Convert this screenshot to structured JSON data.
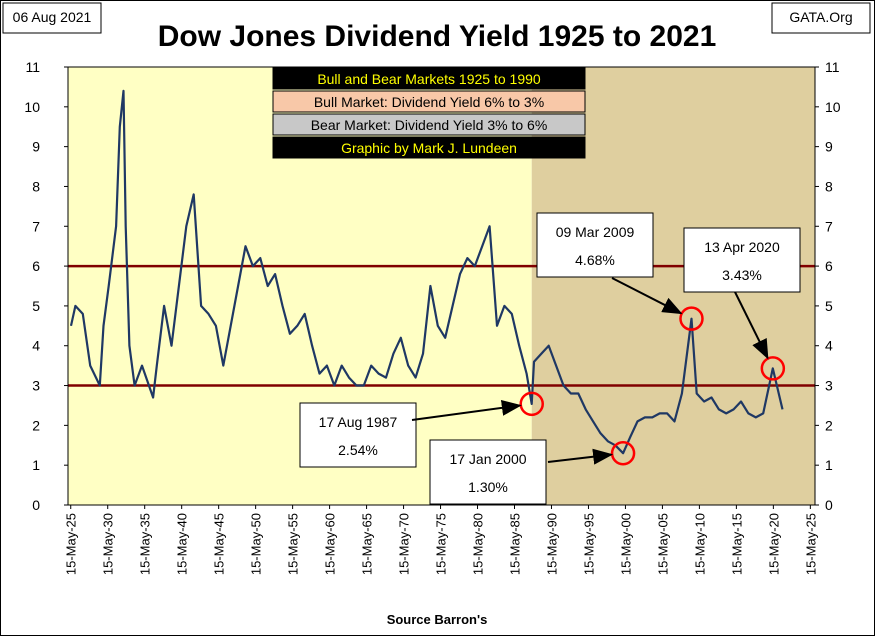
{
  "chart_data": {
    "type": "line",
    "title": "Dow Jones Dividend Yield 1925 to 2021",
    "date_stamp": "06 Aug 2021",
    "source_site": "GATA.Org",
    "x_label": "Source Barron's",
    "legend_box": [
      {
        "text": "Bull and Bear Markets 1925 to 1990",
        "bg": "#000000",
        "fg": "#ffff00"
      },
      {
        "text": "Bull Market: Dividend Yield 6% to 3%",
        "bg": "#f8c8a8",
        "fg": "#000000"
      },
      {
        "text": "Bear Market: Dividend Yield 3% to 6%",
        "bg": "#c8c8c8",
        "fg": "#000000"
      },
      {
        "text": "Graphic by Mark J. Lundeen",
        "bg": "#000000",
        "fg": "#ffff00"
      }
    ],
    "shading": [
      {
        "from": 1925,
        "to": 1987.7,
        "color": "#ffffc4"
      },
      {
        "from": 1987.7,
        "to": 2026,
        "color": "#dfcf9f"
      }
    ],
    "reference_lines": [
      6,
      3
    ],
    "reference_color": "#800000",
    "series": [
      {
        "name": "Dividend Yield",
        "color": "#1f3864",
        "x": [
          1925.4,
          1926,
          1927,
          1928,
          1929.3,
          1929.8,
          1930.5,
          1931.5,
          1932,
          1932.5,
          1932.8,
          1933.3,
          1934,
          1935,
          1936.5,
          1937,
          1938,
          1939,
          1940,
          1941,
          1942,
          1943,
          1944,
          1945,
          1946,
          1947,
          1948,
          1949,
          1950,
          1951,
          1952,
          1953,
          1954,
          1955,
          1956,
          1957,
          1958,
          1959,
          1960,
          1961,
          1962,
          1963,
          1964,
          1965,
          1966,
          1967,
          1968,
          1969,
          1970,
          1971,
          1972,
          1973,
          1974,
          1975,
          1976,
          1977,
          1978,
          1979,
          1980,
          1981,
          1982,
          1983,
          1984,
          1985,
          1986,
          1987,
          1987.7,
          1988,
          1989,
          1990,
          1991,
          1992,
          1993,
          1994,
          1995,
          1996,
          1997,
          1998,
          1999,
          2000.05,
          2001,
          2002,
          2003,
          2004,
          2005,
          2006,
          2007,
          2008,
          2009.3,
          2010,
          2011,
          2012,
          2013,
          2014,
          2015,
          2016,
          2017,
          2018,
          2019,
          2020.3,
          2021.6
        ],
        "values": [
          4.5,
          5.0,
          4.8,
          3.5,
          3.0,
          4.5,
          5.5,
          7,
          9.5,
          10.4,
          7,
          4,
          3.0,
          3.5,
          2.7,
          3.5,
          5,
          4,
          5.5,
          7,
          7.8,
          5,
          4.8,
          4.5,
          3.5,
          4.5,
          5.5,
          6.5,
          6.0,
          6.2,
          5.5,
          5.8,
          5.0,
          4.3,
          4.5,
          4.8,
          4.0,
          3.3,
          3.5,
          3.0,
          3.5,
          3.2,
          3.0,
          3.0,
          3.5,
          3.3,
          3.2,
          3.8,
          4.2,
          3.5,
          3.2,
          3.8,
          5.5,
          4.5,
          4.2,
          5.0,
          5.8,
          6.2,
          6.0,
          6.5,
          7.0,
          4.5,
          5.0,
          4.8,
          4.0,
          3.3,
          2.54,
          3.6,
          3.8,
          4.0,
          3.5,
          3.0,
          2.8,
          2.8,
          2.4,
          2.1,
          1.8,
          1.6,
          1.5,
          1.3,
          1.7,
          2.1,
          2.2,
          2.2,
          2.3,
          2.3,
          2.1,
          2.8,
          4.68,
          2.8,
          2.6,
          2.7,
          2.4,
          2.3,
          2.4,
          2.6,
          2.3,
          2.2,
          2.3,
          3.43,
          2.4
        ]
      }
    ],
    "annotations": [
      {
        "date_label": "17 Aug 1987",
        "value_label": "2.54%",
        "x": 1987.7,
        "y": 2.54
      },
      {
        "date_label": "17 Jan 2000",
        "value_label": "1.30%",
        "x": 2000.05,
        "y": 1.3
      },
      {
        "date_label": "09 Mar 2009",
        "value_label": "4.68%",
        "x": 2009.3,
        "y": 4.68
      },
      {
        "date_label": "13 Apr 2020",
        "value_label": "3.43%",
        "x": 2020.3,
        "y": 3.43
      }
    ],
    "xlim": [
      1925,
      2026
    ],
    "ylim": [
      0,
      11
    ],
    "yticks": [
      0,
      1,
      2,
      3,
      4,
      5,
      6,
      7,
      8,
      9,
      10,
      11
    ],
    "y2lim": [
      0,
      11
    ],
    "y2ticks": [
      0,
      1,
      2,
      3,
      4,
      5,
      6,
      7,
      8,
      9,
      10,
      11
    ],
    "xticks": [
      {
        "value": 1925.37,
        "label": "15-May-25"
      },
      {
        "value": 1930.37,
        "label": "15-May-30"
      },
      {
        "value": 1935.37,
        "label": "15-May-35"
      },
      {
        "value": 1940.37,
        "label": "15-May-40"
      },
      {
        "value": 1945.37,
        "label": "15-May-45"
      },
      {
        "value": 1950.37,
        "label": "15-May-50"
      },
      {
        "value": 1955.37,
        "label": "15-May-55"
      },
      {
        "value": 1960.37,
        "label": "15-May-60"
      },
      {
        "value": 1965.37,
        "label": "15-May-65"
      },
      {
        "value": 1970.37,
        "label": "15-May-70"
      },
      {
        "value": 1975.37,
        "label": "15-May-75"
      },
      {
        "value": 1980.37,
        "label": "15-May-80"
      },
      {
        "value": 1985.37,
        "label": "15-May-85"
      },
      {
        "value": 1990.37,
        "label": "15-May-90"
      },
      {
        "value": 1995.37,
        "label": "15-May-95"
      },
      {
        "value": 2000.37,
        "label": "15-May-00"
      },
      {
        "value": 2005.37,
        "label": "15-May-05"
      },
      {
        "value": 2010.37,
        "label": "15-May-10"
      },
      {
        "value": 2015.37,
        "label": "15-May-15"
      },
      {
        "value": 2020.37,
        "label": "15-May-20"
      },
      {
        "value": 2025.37,
        "label": "15-May-25"
      }
    ]
  }
}
